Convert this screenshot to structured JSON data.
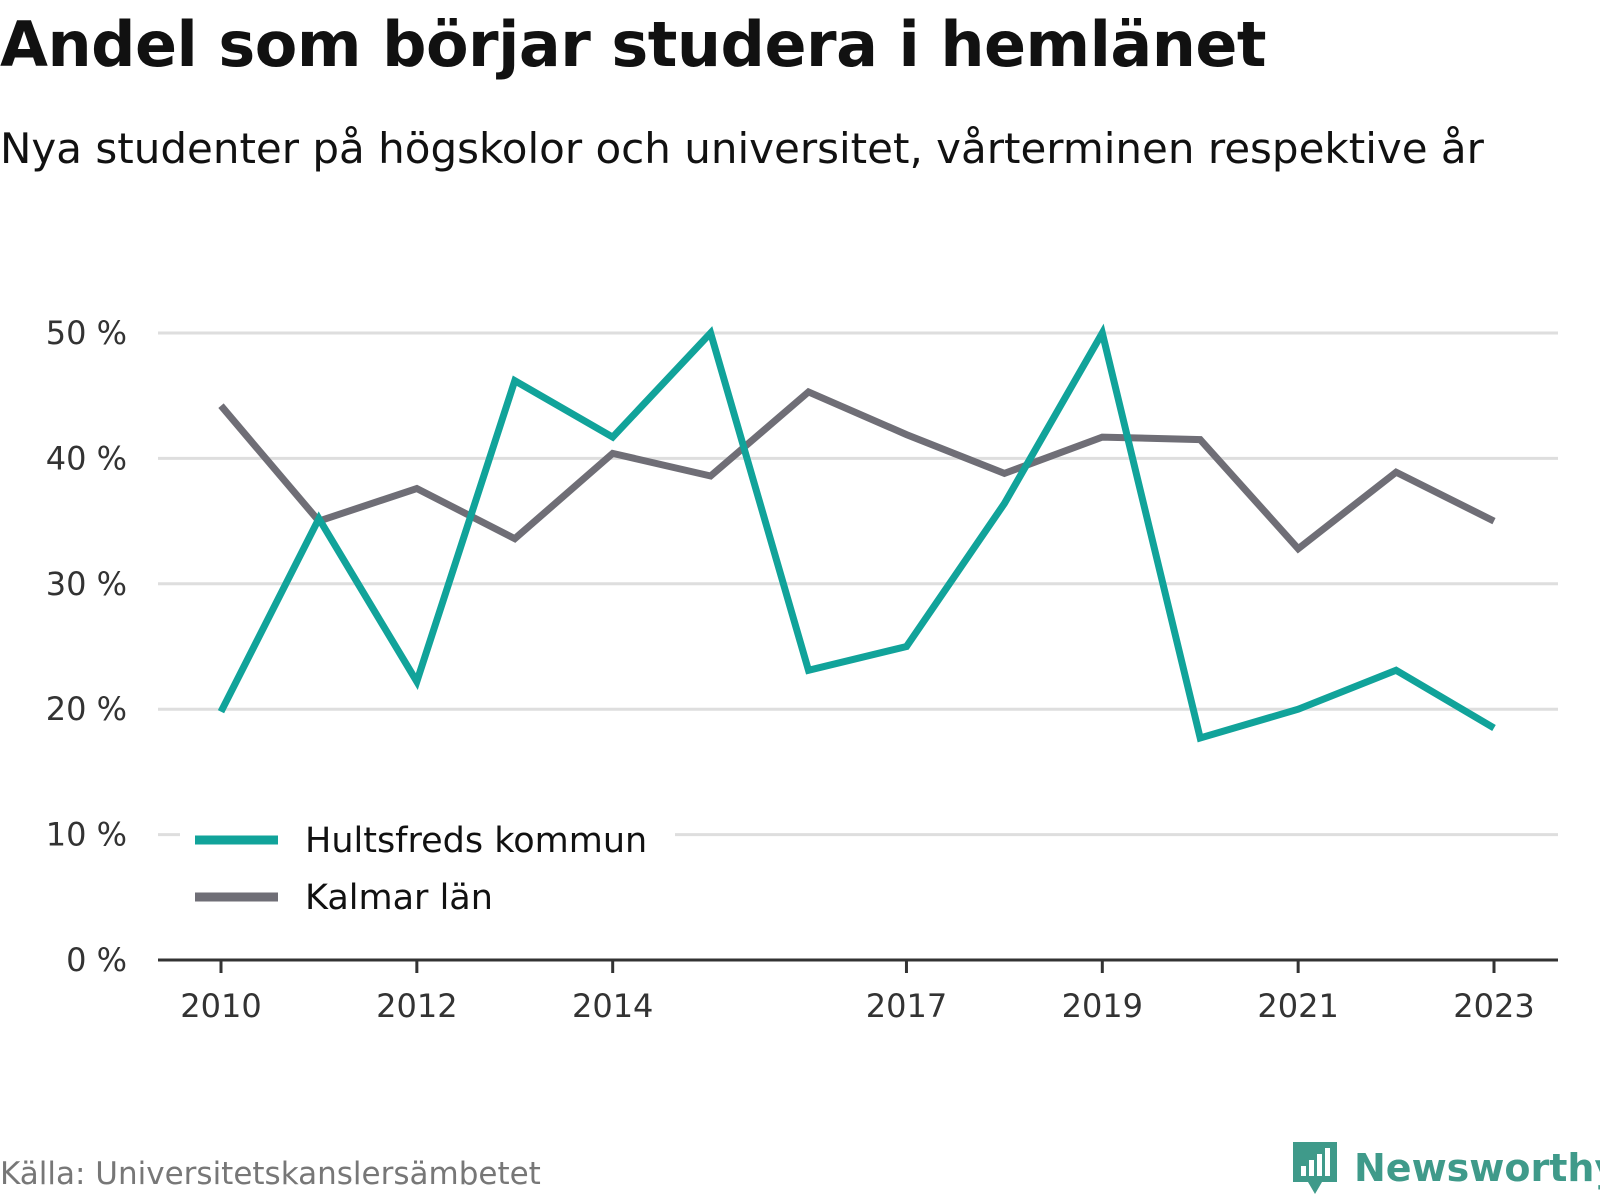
{
  "title": "Andel som börjar studera i hemlänet",
  "subtitle": "Nya studenter på högskolor och universitet, vårterminen respektive år",
  "source": "Källa: Universitetskanslersämbetet",
  "brand": {
    "name": "Newsworthy",
    "icon": "newsworthy-logo-icon",
    "color": "#3f9a8a"
  },
  "chart_data": {
    "type": "line",
    "x": [
      2010,
      2011,
      2012,
      2013,
      2014,
      2015,
      2016,
      2017,
      2018,
      2019,
      2020,
      2021,
      2022,
      2023
    ],
    "x_tick_labels": [
      "2010",
      "2012",
      "2014",
      "2017",
      "2019",
      "2021",
      "2023"
    ],
    "y_tick_labels": [
      "0 %",
      "10 %",
      "20 %",
      "30 %",
      "40 %",
      "50 %"
    ],
    "ylim": [
      0,
      50
    ],
    "grid": true,
    "legend_position": "bottom-left",
    "series": [
      {
        "name": "Hultsfreds kommun",
        "color": "#11a39a",
        "values": [
          19.8,
          35.2,
          22.2,
          46.2,
          41.7,
          50.0,
          23.1,
          25.0,
          36.4,
          50.0,
          17.7,
          20.0,
          23.1,
          18.5
        ]
      },
      {
        "name": "Kalmar län",
        "color": "#6f6e76",
        "values": [
          44.2,
          35.0,
          37.6,
          33.6,
          40.4,
          38.6,
          45.3,
          41.9,
          38.8,
          41.7,
          41.5,
          32.8,
          38.9,
          35.0
        ]
      }
    ]
  }
}
